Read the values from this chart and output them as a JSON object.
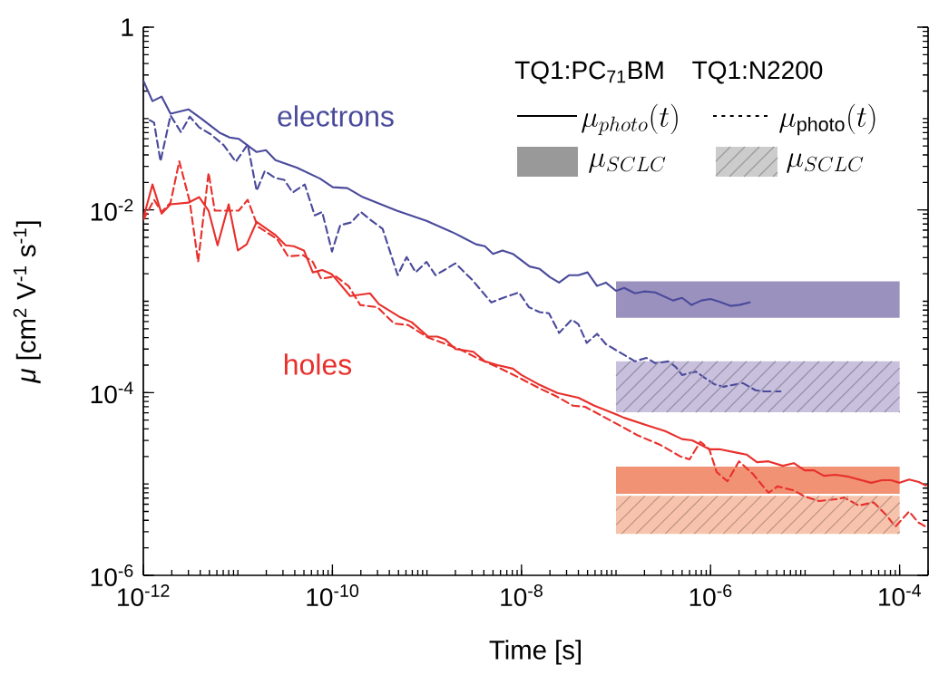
{
  "chart_data": {
    "type": "line",
    "xlabel": "Time [s]",
    "ylabel": "*μ* [cm$^{2}$ V$^{-1}$ s$^{-1}$]",
    "log": "xy",
    "xlim": [
      1e-12,
      0.0002
    ],
    "ylim": [
      1e-06,
      1
    ],
    "xticks": [
      {
        "value": 1e-12,
        "label": "10$^{-12}$"
      },
      {
        "value": 1e-10,
        "label": "10$^{-10}$"
      },
      {
        "value": 1e-08,
        "label": "10$^{-8}$"
      },
      {
        "value": 1e-06,
        "label": "10$^{-6}$"
      },
      {
        "value": 0.0001,
        "label": "10$^{-4}$"
      }
    ],
    "yticks": [
      {
        "value": 1e-06,
        "label": "10$^{-6}$"
      },
      {
        "value": 0.0001,
        "label": "10$^{-4}$"
      },
      {
        "value": 0.01,
        "label": "10$^{-2}$"
      },
      1
    ],
    "grid": false,
    "annotations": [
      "TQ1:PC$_{71}$BM",
      "TQ1:N2200",
      "\\mu_{photo}(t)",
      "\\mu_{\\mathrm{photo}}(t)",
      "\\mu_{SCLC}",
      "\\mu_{SCLC}"
    ],
    "series": [
      {
        "name": "electrons",
        "color": "#4a4a9c",
        "line_style": "solid",
        "x": [
          1e-12,
          1.25e-12,
          1.56e-12,
          1.94e-12,
          3e-12,
          4.1e-12,
          6.4e-12,
          8.2e-12,
          1.02e-11,
          1.58e-11,
          1.98e-11,
          2.5e-11,
          4.2e-11,
          7.4e-11,
          1.01e-10,
          1.44e-10,
          2.1e-10,
          4.8e-10,
          9.9e-10,
          2e-09,
          3.3e-09,
          4.1e-09,
          5e-09,
          6.3e-09,
          8.1e-09,
          1.22e-08,
          1.56e-08,
          2e-08,
          2.5e-08,
          3.2e-08,
          4e-08,
          5e-08,
          6.3e-08,
          7.8e-08,
          1e-07,
          1.22e-07,
          1.59e-07,
          1.99e-07,
          2.6e-07,
          4e-07,
          5e-07,
          6.3e-07,
          8e-07,
          1e-06,
          1.24e-06,
          1.62e-06,
          2e-06,
          2.6e-06
        ],
        "values": [
          0.26,
          0.155,
          0.174,
          0.113,
          0.126,
          0.1,
          0.07,
          0.062,
          0.06,
          0.043,
          0.045,
          0.035,
          0.029,
          0.022,
          0.0177,
          0.0173,
          0.0138,
          0.0098,
          0.0076,
          0.0055,
          0.0042,
          0.004,
          0.0033,
          0.0036,
          0.0033,
          0.0024,
          0.00226,
          0.00184,
          0.0016,
          0.00193,
          0.00193,
          0.00207,
          0.00147,
          0.0016,
          0.0013,
          0.0014,
          0.00122,
          0.00128,
          0.00125,
          0.00102,
          0.00109,
          0.00091,
          0.00102,
          0.00106,
          0.00099,
          0.00089,
          0.00091,
          0.00097
        ]
      },
      {
        "color": "#4a4a9c",
        "line_style": "dashed",
        "x": [
          1.17e-12,
          1.3e-12,
          1.52e-12,
          1.94e-12,
          2.5e-12,
          3.1e-12,
          3.9e-12,
          5.2e-12,
          7.1e-12,
          9.5e-12,
          1.27e-11,
          1.58e-11,
          1.93e-11,
          2.5e-11,
          3.1e-11,
          3.8e-11,
          5.1e-11,
          6.5e-11,
          7.8e-11,
          9.9e-11,
          1.21e-10,
          1.58e-10,
          2e-10,
          2.6e-10,
          3.4e-10,
          4.9e-10,
          6.1e-10,
          7.6e-10,
          9.9e-10,
          1.23e-09,
          1.53e-09,
          2e-09,
          3e-09,
          4.8e-09,
          6.7e-09,
          9.4e-09,
          1.2e-08,
          1.56e-08,
          1.95e-08,
          2.5e-08,
          3.4e-08,
          4e-08,
          4.9e-08,
          6.3e-08,
          7.8e-08,
          1.07e-07,
          1.59e-07,
          2.1e-07,
          2.6e-07,
          3.6e-07,
          4.3e-07,
          5e-07,
          7e-07,
          8.3e-07,
          1.09e-06,
          1.36e-06,
          2.2e-06,
          3e-06,
          3.7e-06,
          5.5e-06
        ],
        "values": [
          0.096,
          0.09,
          0.034,
          0.108,
          0.071,
          0.105,
          0.08,
          0.067,
          0.051,
          0.0336,
          0.052,
          0.0162,
          0.0267,
          0.0223,
          0.0213,
          0.0155,
          0.019,
          0.0087,
          0.0095,
          0.0035,
          0.0068,
          0.0073,
          0.0095,
          0.0076,
          0.0062,
          0.00193,
          0.00305,
          0.00207,
          0.0027,
          0.00193,
          0.0022,
          0.0026,
          0.00172,
          0.00097,
          0.00111,
          0.00125,
          0.00086,
          0.00076,
          0.00074,
          0.00045,
          0.00063,
          0.00056,
          0.00035,
          0.00044,
          0.00034,
          0.00028,
          0.00022,
          0.00024,
          0.00021,
          0.00022,
          0.00019,
          0.000156,
          0.00017,
          0.00015,
          0.000124,
          0.000116,
          0.000127,
          0.000106,
          0.000103,
          0.000103
        ]
      },
      {
        "name": "holes",
        "color": "#e8302c",
        "line_style": "solid",
        "x": [
          1e-12,
          1.25e-12,
          1.56e-12,
          1.94e-12,
          3e-12,
          3.9e-12,
          4.9e-12,
          6.1e-12,
          8e-12,
          1e-11,
          1.24e-11,
          1.58e-11,
          2.5e-11,
          3.2e-11,
          3.9e-11,
          5e-11,
          6.2e-11,
          7.8e-11,
          9.9e-11,
          1.54e-10,
          2.5e-10,
          3.1e-10,
          5.2e-10,
          6.9e-10,
          1.03e-09,
          1.29e-09,
          1.57e-09,
          2e-09,
          3.1e-09,
          4.1e-09,
          5.6e-09,
          8.1e-09,
          1e-08,
          1.5e-08,
          2.4e-08,
          4e-08,
          5.9e-08,
          1e-07,
          1.22e-07,
          2.1e-07,
          3.3e-07,
          5e-07,
          6.4e-07,
          9.7e-07,
          1.24e-06,
          1.89e-06,
          2.4e-06,
          3.1e-06,
          4.1e-06,
          5.8e-06,
          7.6e-06,
          9.9e-06,
          1.24e-05,
          1.58e-05,
          2.1e-05,
          2.9e-05,
          5e-05,
          6.5e-05,
          8.1e-05,
          0.0001,
          0.000126,
          0.00016,
          0.00019
        ],
        "values": [
          0.0081,
          0.019,
          0.0091,
          0.0115,
          0.012,
          0.0138,
          0.0098,
          0.0041,
          0.0115,
          0.0036,
          0.0042,
          0.0074,
          0.0053,
          0.0041,
          0.004,
          0.0036,
          0.00207,
          0.0022,
          0.00197,
          0.00114,
          0.00122,
          0.00093,
          0.00067,
          0.00059,
          0.00041,
          0.00041,
          0.00038,
          0.0003,
          0.00028,
          0.00022,
          0.0002,
          0.000183,
          0.000156,
          0.000124,
          9.9e-05,
          8.8e-05,
          7.2e-05,
          5.8e-05,
          5.3e-05,
          4.4e-05,
          3.8e-05,
          3.1e-05,
          3e-05,
          2.4e-05,
          2.4e-05,
          2.2e-05,
          2.1e-05,
          1.73e-05,
          1.77e-05,
          1.58e-05,
          1.69e-05,
          1.41e-05,
          1.41e-05,
          1.23e-05,
          1.26e-05,
          1.2e-05,
          1.03e-05,
          1.1e-05,
          1.1e-05,
          1.03e-05,
          1.12e-05,
          1.05e-05,
          9.6e-06
        ]
      },
      {
        "color": "#e8302c",
        "line_style": "dashed",
        "x": [
          1e-12,
          1.3e-12,
          1.56e-12,
          1.94e-12,
          2.4e-12,
          3.1e-12,
          3.8e-12,
          4.9e-12,
          5.7e-12,
          7.5e-12,
          1.02e-11,
          1.27e-11,
          1.62e-11,
          2.6e-11,
          3.4e-11,
          4.9e-11,
          6.2e-11,
          7.6e-11,
          1.08e-10,
          1.48e-10,
          1.97e-10,
          3e-10,
          4.5e-10,
          6.3e-10,
          1.03e-09,
          1.47e-09,
          2.2e-09,
          3.5e-09,
          5.6e-09,
          9.4e-09,
          1.56e-08,
          2.3e-08,
          3.5e-08,
          4.7e-08,
          7.5e-08,
          1e-07,
          1.7e-07,
          2.9e-07,
          4.8e-07,
          6e-07,
          7.8e-07,
          9.7e-07,
          1.16e-06,
          1.51e-06,
          2e-06,
          2.8e-06,
          4.1e-06,
          5.1e-06,
          7.6e-06,
          9.9e-06,
          1.41e-05,
          2.1e-05,
          2.6e-05,
          3.7e-05,
          5.3e-05,
          7.2e-05,
          9e-05,
          0.000126,
          0.000157,
          0.00019
        ],
        "values": [
          0.0078,
          0.0129,
          0.0095,
          0.012,
          0.034,
          0.0123,
          0.0027,
          0.0255,
          0.0098,
          0.0098,
          0.0098,
          0.0129,
          0.0066,
          0.0048,
          0.0031,
          0.0032,
          0.0027,
          0.00176,
          0.00188,
          0.00147,
          0.00091,
          0.00086,
          0.00057,
          0.00055,
          0.0004,
          0.00035,
          0.0003,
          0.000235,
          0.00019,
          0.000146,
          0.000111,
          9.2e-05,
          7.2e-05,
          7e-05,
          5.4e-05,
          4.6e-05,
          3.4e-05,
          2.7e-05,
          2e-05,
          1.86e-05,
          2.9e-05,
          2.4e-05,
          1.35e-05,
          1.07e-05,
          1.77e-05,
          1.29e-05,
          8e-06,
          9.4e-06,
          8.5e-06,
          7.3e-06,
          6.5e-06,
          6.8e-06,
          7.1e-06,
          5.8e-06,
          6.3e-06,
          4.6e-06,
          3.4e-06,
          5e-06,
          3.8e-06,
          3.4e-06
        ]
      },
      {
        "color": "#9b91be",
        "line_style": "solid",
        "x": [
          1e-07,
          0.0001
        ],
        "values": [
          null,
          null
        ],
        "lower": [
          0.00066,
          0.00066
        ],
        "upper": [
          0.00165,
          0.00165
        ]
      },
      {
        "color": "#c8c0dd",
        "line_style": "dashed",
        "x": [
          1e-07,
          0.0001
        ],
        "values": [
          null,
          null
        ],
        "lower": [
          6.1e-05,
          6.1e-05
        ],
        "upper": [
          0.00022,
          0.00022
        ]
      },
      {
        "color": "#f09273",
        "line_style": "solid",
        "x": [
          1e-07,
          0.0001
        ],
        "values": [
          null,
          null
        ],
        "lower": [
          7.8e-06,
          7.8e-06
        ],
        "upper": [
          1.55e-05,
          1.55e-05
        ]
      },
      {
        "color": "#f8c3ac",
        "line_style": "dashed",
        "x": [
          1e-07,
          0.0001
        ],
        "values": [
          null,
          null
        ],
        "lower": [
          2.85e-06,
          2.85e-06
        ],
        "upper": [
          7.4e-06,
          7.4e-06
        ]
      }
    ]
  }
}
